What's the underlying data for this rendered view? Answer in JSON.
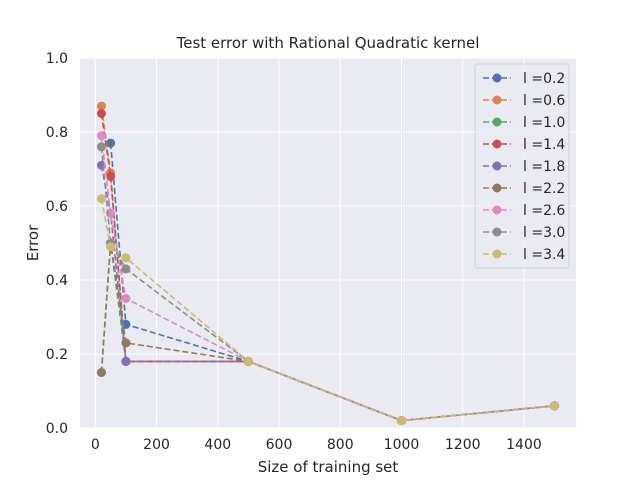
{
  "chart_data": {
    "type": "line",
    "title": "Test error with Rational Quadratic kernel",
    "xlabel": "Size of training set",
    "ylabel": "Error",
    "xlim": [
      -50,
      1570
    ],
    "ylim": [
      0,
      1.0
    ],
    "xticks": [
      0,
      200,
      400,
      600,
      800,
      1000,
      1200,
      1400
    ],
    "yticks": [
      0.0,
      0.2,
      0.4,
      0.6,
      0.8,
      1.0
    ],
    "grid": true,
    "legend_position": "top-right",
    "background": "#eaeaf2",
    "series": [
      {
        "name": "l =0.2",
        "color": "#4c72b0",
        "x": [
          50,
          100,
          500,
          1000,
          1500
        ],
        "y": [
          0.77,
          0.28,
          0.18,
          0.02,
          0.06
        ]
      },
      {
        "name": "l =0.6",
        "color": "#dd8452",
        "x": [
          20,
          50,
          100,
          500,
          1000,
          1500
        ],
        "y": [
          0.87,
          0.69,
          0.18,
          0.18,
          0.02,
          0.06
        ]
      },
      {
        "name": "l =1.0",
        "color": "#55a868",
        "x": [
          20,
          50,
          100,
          500,
          1000,
          1500
        ],
        "y": [
          0.15,
          0.5,
          0.18,
          0.18,
          0.02,
          0.06
        ]
      },
      {
        "name": "l =1.4",
        "color": "#c44e52",
        "x": [
          20,
          50,
          100,
          500,
          1000,
          1500
        ],
        "y": [
          0.85,
          0.68,
          0.18,
          0.18,
          0.02,
          0.06
        ]
      },
      {
        "name": "l =1.8",
        "color": "#8172b3",
        "x": [
          20,
          50,
          100,
          500,
          1000,
          1500
        ],
        "y": [
          0.71,
          0.58,
          0.18,
          0.18,
          0.02,
          0.06
        ]
      },
      {
        "name": "l =2.2",
        "color": "#937860",
        "x": [
          20,
          50,
          100,
          500,
          1000,
          1500
        ],
        "y": [
          0.15,
          0.5,
          0.23,
          0.18,
          0.02,
          0.06
        ]
      },
      {
        "name": "l =2.6",
        "color": "#da8bc3",
        "x": [
          20,
          50,
          100,
          500,
          1000,
          1500
        ],
        "y": [
          0.79,
          0.58,
          0.35,
          0.18,
          0.02,
          0.06
        ]
      },
      {
        "name": "l =3.0",
        "color": "#8c8c8c",
        "x": [
          20,
          50,
          100,
          500,
          1000,
          1500
        ],
        "y": [
          0.76,
          0.5,
          0.43,
          0.18,
          0.02,
          0.06
        ]
      },
      {
        "name": "l =3.4",
        "color": "#ccb974",
        "x": [
          20,
          50,
          100,
          500,
          1000,
          1500
        ],
        "y": [
          0.62,
          0.49,
          0.46,
          0.18,
          0.02,
          0.06
        ]
      }
    ]
  }
}
